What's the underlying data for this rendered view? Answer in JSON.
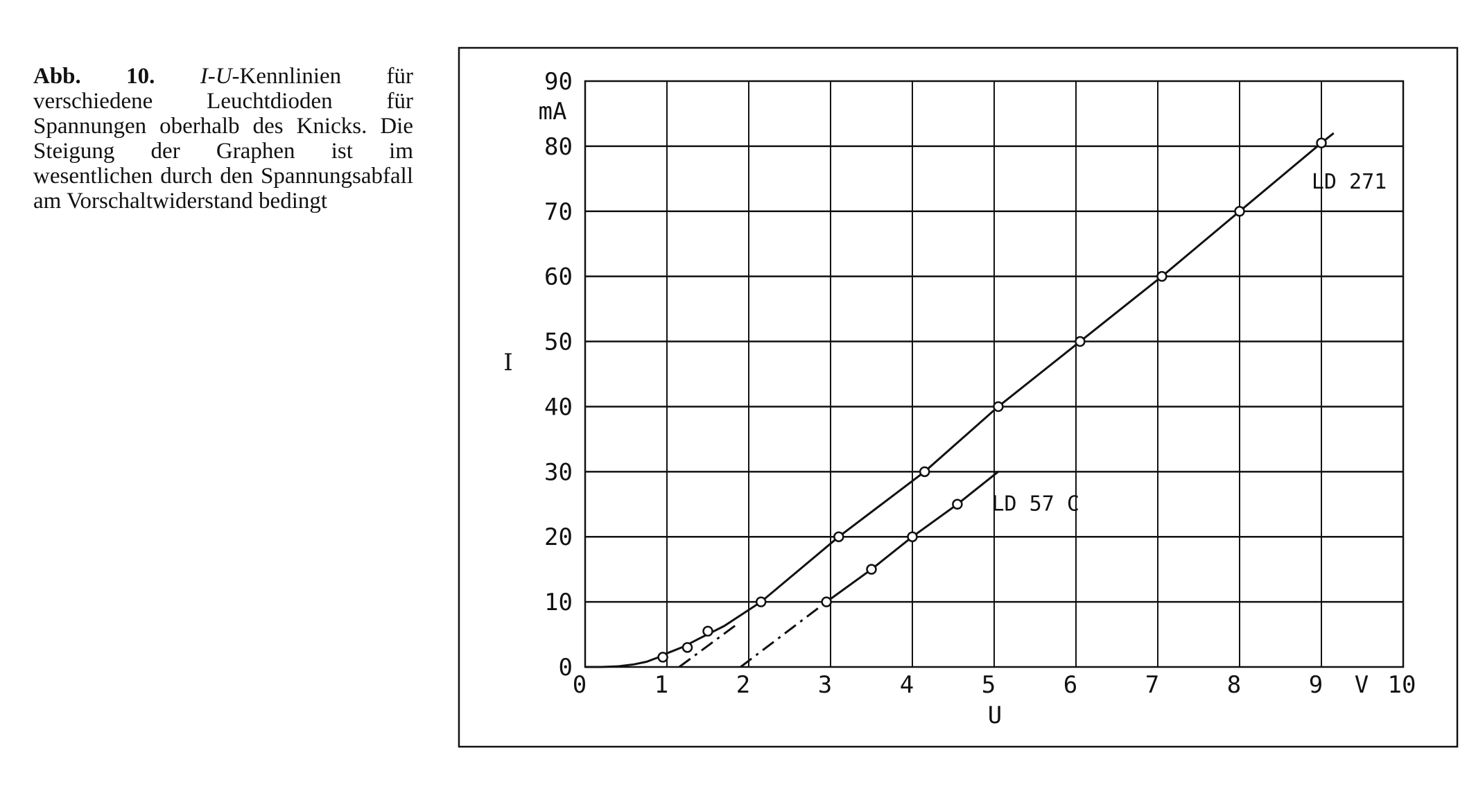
{
  "caption": {
    "label": "Abb. 10.",
    "italic": "I-U-",
    "text": "Kennlinien für verschiedene Leuchtdioden für Spannungen oberhalb des Knicks. Die Steigung der Graphen ist im wesentlichen durch den Spannungsabfall am Vorschaltwiderstand bedingt"
  },
  "chart_data": {
    "type": "line",
    "title": "",
    "xlabel": "U",
    "ylabel": "I",
    "x_unit": "V",
    "y_unit": "mA",
    "xlim": [
      0,
      10
    ],
    "ylim": [
      0,
      90
    ],
    "x_ticks": [
      "0",
      "1",
      "2",
      "3",
      "4",
      "5",
      "6",
      "7",
      "8",
      "9",
      "10"
    ],
    "y_ticks": [
      "0",
      "10",
      "20",
      "30",
      "40",
      "50",
      "60",
      "70",
      "80",
      "90"
    ],
    "grid": true,
    "series": [
      {
        "name": "LD 271",
        "points": [
          [
            0.95,
            1.5
          ],
          [
            1.25,
            3
          ],
          [
            1.5,
            5.5
          ],
          [
            2.15,
            10
          ],
          [
            3.1,
            20
          ],
          [
            4.15,
            30
          ],
          [
            5.05,
            40
          ],
          [
            6.05,
            50
          ],
          [
            7.05,
            60
          ],
          [
            8.0,
            70
          ],
          [
            9.0,
            80.5
          ]
        ],
        "curve": [
          [
            0.0,
            0.0
          ],
          [
            0.2,
            0.0
          ],
          [
            0.4,
            0.1
          ],
          [
            0.6,
            0.4
          ],
          [
            0.75,
            0.8
          ],
          [
            0.9,
            1.5
          ],
          [
            1.0,
            2.1
          ],
          [
            1.2,
            3.1
          ],
          [
            1.4,
            4.4
          ],
          [
            1.7,
            6.3
          ],
          [
            2.15,
            10
          ],
          [
            3.1,
            20
          ],
          [
            4.15,
            30
          ],
          [
            5.05,
            40
          ],
          [
            6.05,
            50
          ],
          [
            7.05,
            60
          ],
          [
            8.0,
            70
          ],
          [
            9.0,
            80.5
          ],
          [
            9.15,
            82
          ]
        ],
        "extrapolation": [
          [
            1.15,
            0.0
          ],
          [
            1.85,
            6.5
          ]
        ]
      },
      {
        "name": "LD 57 C",
        "points": [
          [
            2.95,
            10
          ],
          [
            3.5,
            15
          ],
          [
            4.0,
            20
          ],
          [
            4.55,
            25
          ]
        ],
        "curve": [
          [
            2.95,
            10
          ],
          [
            3.5,
            15
          ],
          [
            4.0,
            20
          ],
          [
            4.55,
            25
          ],
          [
            5.05,
            30
          ]
        ],
        "extrapolation": [
          [
            1.9,
            0.0
          ],
          [
            2.95,
            10
          ]
        ]
      }
    ]
  }
}
